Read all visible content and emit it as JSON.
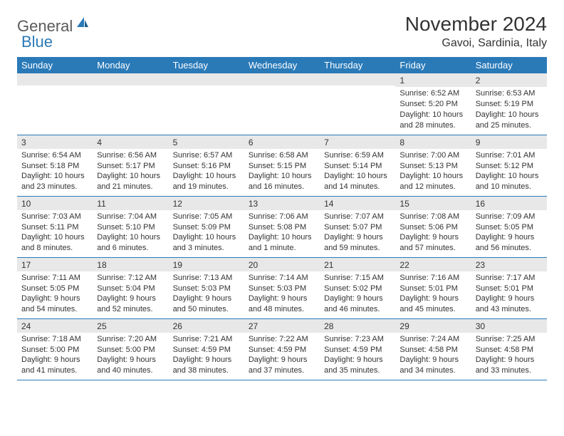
{
  "logo": {
    "general": "General",
    "blue": "Blue"
  },
  "title": "November 2024",
  "location": "Gavoi, Sardinia, Italy",
  "colors": {
    "header_bg": "#2a7ab8",
    "header_text": "#ffffff",
    "row_divider": "#2a7ab8",
    "daynum_bg": "#e8e8e8",
    "text": "#333333",
    "logo_gray": "#5a5a5a",
    "logo_blue": "#2a7ab8"
  },
  "dow": [
    "Sunday",
    "Monday",
    "Tuesday",
    "Wednesday",
    "Thursday",
    "Friday",
    "Saturday"
  ],
  "weeks": [
    [
      {
        "n": null
      },
      {
        "n": null
      },
      {
        "n": null
      },
      {
        "n": null
      },
      {
        "n": null
      },
      {
        "n": "1",
        "sunrise": "6:52 AM",
        "sunset": "5:20 PM",
        "daylight": "10 hours and 28 minutes."
      },
      {
        "n": "2",
        "sunrise": "6:53 AM",
        "sunset": "5:19 PM",
        "daylight": "10 hours and 25 minutes."
      }
    ],
    [
      {
        "n": "3",
        "sunrise": "6:54 AM",
        "sunset": "5:18 PM",
        "daylight": "10 hours and 23 minutes."
      },
      {
        "n": "4",
        "sunrise": "6:56 AM",
        "sunset": "5:17 PM",
        "daylight": "10 hours and 21 minutes."
      },
      {
        "n": "5",
        "sunrise": "6:57 AM",
        "sunset": "5:16 PM",
        "daylight": "10 hours and 19 minutes."
      },
      {
        "n": "6",
        "sunrise": "6:58 AM",
        "sunset": "5:15 PM",
        "daylight": "10 hours and 16 minutes."
      },
      {
        "n": "7",
        "sunrise": "6:59 AM",
        "sunset": "5:14 PM",
        "daylight": "10 hours and 14 minutes."
      },
      {
        "n": "8",
        "sunrise": "7:00 AM",
        "sunset": "5:13 PM",
        "daylight": "10 hours and 12 minutes."
      },
      {
        "n": "9",
        "sunrise": "7:01 AM",
        "sunset": "5:12 PM",
        "daylight": "10 hours and 10 minutes."
      }
    ],
    [
      {
        "n": "10",
        "sunrise": "7:03 AM",
        "sunset": "5:11 PM",
        "daylight": "10 hours and 8 minutes."
      },
      {
        "n": "11",
        "sunrise": "7:04 AM",
        "sunset": "5:10 PM",
        "daylight": "10 hours and 6 minutes."
      },
      {
        "n": "12",
        "sunrise": "7:05 AM",
        "sunset": "5:09 PM",
        "daylight": "10 hours and 3 minutes."
      },
      {
        "n": "13",
        "sunrise": "7:06 AM",
        "sunset": "5:08 PM",
        "daylight": "10 hours and 1 minute."
      },
      {
        "n": "14",
        "sunrise": "7:07 AM",
        "sunset": "5:07 PM",
        "daylight": "9 hours and 59 minutes."
      },
      {
        "n": "15",
        "sunrise": "7:08 AM",
        "sunset": "5:06 PM",
        "daylight": "9 hours and 57 minutes."
      },
      {
        "n": "16",
        "sunrise": "7:09 AM",
        "sunset": "5:05 PM",
        "daylight": "9 hours and 56 minutes."
      }
    ],
    [
      {
        "n": "17",
        "sunrise": "7:11 AM",
        "sunset": "5:05 PM",
        "daylight": "9 hours and 54 minutes."
      },
      {
        "n": "18",
        "sunrise": "7:12 AM",
        "sunset": "5:04 PM",
        "daylight": "9 hours and 52 minutes."
      },
      {
        "n": "19",
        "sunrise": "7:13 AM",
        "sunset": "5:03 PM",
        "daylight": "9 hours and 50 minutes."
      },
      {
        "n": "20",
        "sunrise": "7:14 AM",
        "sunset": "5:03 PM",
        "daylight": "9 hours and 48 minutes."
      },
      {
        "n": "21",
        "sunrise": "7:15 AM",
        "sunset": "5:02 PM",
        "daylight": "9 hours and 46 minutes."
      },
      {
        "n": "22",
        "sunrise": "7:16 AM",
        "sunset": "5:01 PM",
        "daylight": "9 hours and 45 minutes."
      },
      {
        "n": "23",
        "sunrise": "7:17 AM",
        "sunset": "5:01 PM",
        "daylight": "9 hours and 43 minutes."
      }
    ],
    [
      {
        "n": "24",
        "sunrise": "7:18 AM",
        "sunset": "5:00 PM",
        "daylight": "9 hours and 41 minutes."
      },
      {
        "n": "25",
        "sunrise": "7:20 AM",
        "sunset": "5:00 PM",
        "daylight": "9 hours and 40 minutes."
      },
      {
        "n": "26",
        "sunrise": "7:21 AM",
        "sunset": "4:59 PM",
        "daylight": "9 hours and 38 minutes."
      },
      {
        "n": "27",
        "sunrise": "7:22 AM",
        "sunset": "4:59 PM",
        "daylight": "9 hours and 37 minutes."
      },
      {
        "n": "28",
        "sunrise": "7:23 AM",
        "sunset": "4:59 PM",
        "daylight": "9 hours and 35 minutes."
      },
      {
        "n": "29",
        "sunrise": "7:24 AM",
        "sunset": "4:58 PM",
        "daylight": "9 hours and 34 minutes."
      },
      {
        "n": "30",
        "sunrise": "7:25 AM",
        "sunset": "4:58 PM",
        "daylight": "9 hours and 33 minutes."
      }
    ]
  ],
  "labels": {
    "sunrise": "Sunrise:",
    "sunset": "Sunset:",
    "daylight": "Daylight:"
  }
}
